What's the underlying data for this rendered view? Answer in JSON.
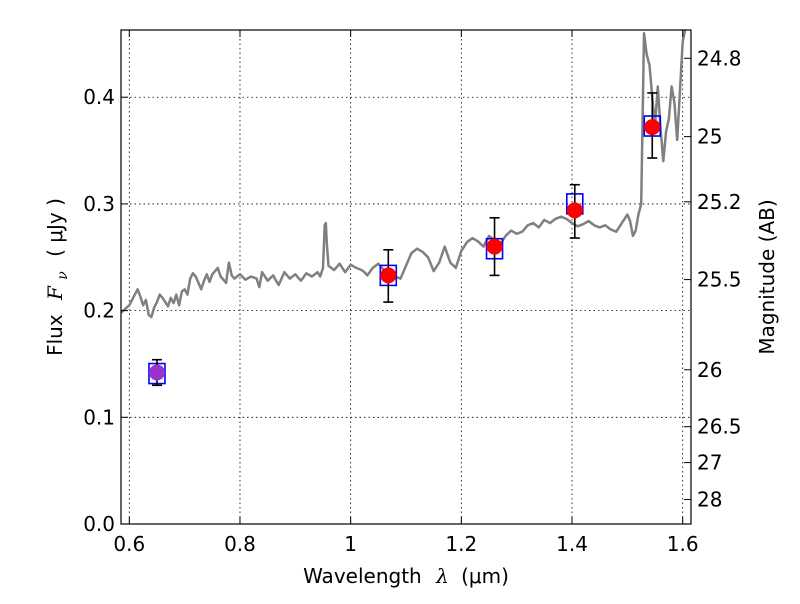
{
  "chart_data": {
    "type": "scatter",
    "title": "",
    "xlabel_prefix": "Wavelength",
    "xlabel_symbol": "λ",
    "xlabel_unit": "(μm)",
    "ylabel_prefix": "Flux",
    "ylabel_symbol": "F",
    "ylabel_symbol_sub": "ν",
    "ylabel_unit": "( μJy )",
    "y2label": "Magnitude (AB)",
    "xlim": [
      0.585,
      1.615
    ],
    "ylim": [
      0.0,
      0.463
    ],
    "grid": true,
    "x_ticks": [
      0.6,
      0.8,
      1.0,
      1.2,
      1.4,
      1.6
    ],
    "x_tick_labels": [
      "0.6",
      "0.8",
      "1",
      "1.2",
      "1.4",
      "1.6"
    ],
    "y_ticks": [
      0.0,
      0.1,
      0.2,
      0.3,
      0.4
    ],
    "y_tick_labels": [
      "0.0",
      "0.1",
      "0.2",
      "0.3",
      "0.4"
    ],
    "y2_ticks": [
      24.8,
      25.0,
      25.2,
      25.5,
      26.0,
      26.5,
      27.0,
      28.0
    ],
    "y2_tick_labels": [
      "24.8",
      "25",
      "25.2",
      "25.5",
      "26",
      "26.5",
      "27",
      "28"
    ],
    "series": [
      {
        "kind": "line",
        "color": "#808080",
        "x": [
          0.585,
          0.6,
          0.61,
          0.615,
          0.62,
          0.625,
          0.63,
          0.635,
          0.64,
          0.645,
          0.65,
          0.655,
          0.66,
          0.67,
          0.675,
          0.68,
          0.685,
          0.69,
          0.695,
          0.7,
          0.705,
          0.71,
          0.715,
          0.72,
          0.73,
          0.735,
          0.74,
          0.745,
          0.75,
          0.76,
          0.765,
          0.77,
          0.775,
          0.78,
          0.785,
          0.79,
          0.8,
          0.81,
          0.82,
          0.83,
          0.835,
          0.84,
          0.85,
          0.86,
          0.865,
          0.87,
          0.88,
          0.89,
          0.9,
          0.91,
          0.92,
          0.93,
          0.94,
          0.945,
          0.95,
          0.953,
          0.955,
          0.957,
          0.96,
          0.97,
          0.98,
          0.99,
          1.0,
          1.01,
          1.02,
          1.025,
          1.03,
          1.04,
          1.05,
          1.06,
          1.07,
          1.08,
          1.09,
          1.1,
          1.11,
          1.12,
          1.13,
          1.14,
          1.15,
          1.16,
          1.17,
          1.18,
          1.19,
          1.2,
          1.21,
          1.22,
          1.23,
          1.24,
          1.25,
          1.26,
          1.27,
          1.28,
          1.29,
          1.3,
          1.31,
          1.32,
          1.33,
          1.34,
          1.35,
          1.36,
          1.37,
          1.38,
          1.39,
          1.4,
          1.41,
          1.42,
          1.43,
          1.44,
          1.45,
          1.46,
          1.47,
          1.48,
          1.49,
          1.5,
          1.505,
          1.51,
          1.515,
          1.52,
          1.525,
          1.53,
          1.535,
          1.54,
          1.545,
          1.55,
          1.555,
          1.56,
          1.565,
          1.57,
          1.575,
          1.58,
          1.585,
          1.59,
          1.595,
          1.6,
          1.605
        ],
        "y": [
          0.198,
          0.205,
          0.215,
          0.22,
          0.213,
          0.205,
          0.21,
          0.196,
          0.194,
          0.203,
          0.208,
          0.215,
          0.212,
          0.204,
          0.212,
          0.207,
          0.215,
          0.205,
          0.218,
          0.22,
          0.215,
          0.23,
          0.235,
          0.232,
          0.22,
          0.228,
          0.234,
          0.227,
          0.234,
          0.24,
          0.232,
          0.229,
          0.226,
          0.245,
          0.233,
          0.23,
          0.234,
          0.229,
          0.232,
          0.23,
          0.222,
          0.236,
          0.228,
          0.233,
          0.228,
          0.224,
          0.236,
          0.23,
          0.234,
          0.228,
          0.235,
          0.232,
          0.236,
          0.232,
          0.24,
          0.28,
          0.282,
          0.262,
          0.242,
          0.238,
          0.244,
          0.236,
          0.243,
          0.24,
          0.238,
          0.236,
          0.233,
          0.24,
          0.244,
          0.238,
          0.235,
          0.232,
          0.23,
          0.242,
          0.254,
          0.258,
          0.255,
          0.25,
          0.237,
          0.245,
          0.26,
          0.245,
          0.24,
          0.256,
          0.264,
          0.268,
          0.265,
          0.26,
          0.27,
          0.266,
          0.262,
          0.27,
          0.275,
          0.272,
          0.274,
          0.28,
          0.282,
          0.278,
          0.285,
          0.282,
          0.286,
          0.288,
          0.286,
          0.282,
          0.279,
          0.281,
          0.284,
          0.28,
          0.278,
          0.28,
          0.276,
          0.274,
          0.282,
          0.29,
          0.284,
          0.27,
          0.275,
          0.29,
          0.3,
          0.46,
          0.44,
          0.43,
          0.4,
          0.373,
          0.41,
          0.37,
          0.34,
          0.368,
          0.38,
          0.41,
          0.395,
          0.36,
          0.405,
          0.452,
          0.465
        ]
      },
      {
        "kind": "markers",
        "marker": "open-square",
        "color": "#0000ff",
        "x": [
          0.65,
          1.068,
          1.26,
          1.405,
          1.545
        ],
        "y": [
          0.141,
          0.233,
          0.258,
          0.3,
          0.373
        ]
      },
      {
        "kind": "markers",
        "marker": "filled-circle",
        "color": "#ff0000",
        "secondary_color": "#9933cc",
        "x": [
          0.65,
          1.068,
          1.26,
          1.405,
          1.545
        ],
        "y": [
          0.142,
          0.233,
          0.26,
          0.294,
          0.372
        ],
        "yerr_low": [
          0.13,
          0.208,
          0.233,
          0.268,
          0.343
        ],
        "yerr_high": [
          0.154,
          0.257,
          0.287,
          0.318,
          0.404
        ],
        "colors": [
          "#9933cc",
          "#ff0000",
          "#ff0000",
          "#ff0000",
          "#ff0000"
        ]
      }
    ]
  }
}
